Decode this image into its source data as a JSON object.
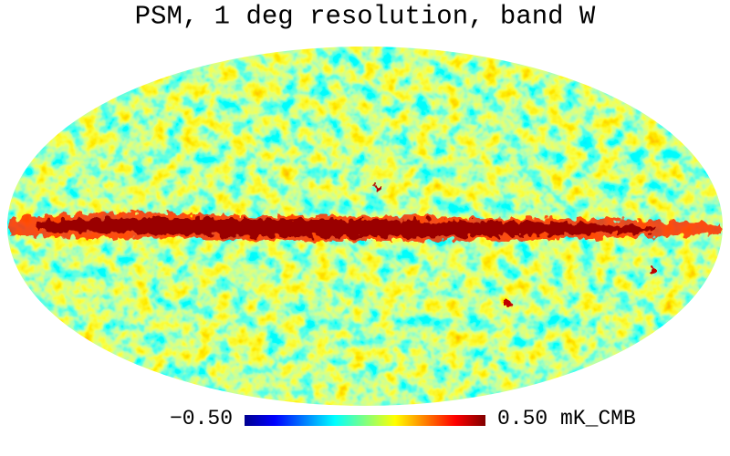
{
  "title": "PSM, 1 deg resolution, band W",
  "colorbar": {
    "ticks": [
      {
        "value": -0.5,
        "label": "−0.50"
      },
      {
        "value": 0.5,
        "label": "0.50"
      }
    ],
    "unit": "mK_CMB"
  }
}
